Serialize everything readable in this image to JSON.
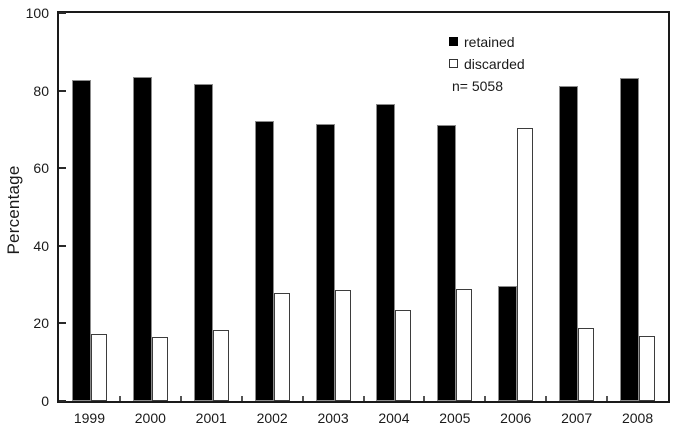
{
  "chart_data": {
    "type": "bar",
    "title": "",
    "xlabel": "",
    "ylabel": "Percentage",
    "categories": [
      "1999",
      "2000",
      "2001",
      "2002",
      "2003",
      "2004",
      "2005",
      "2006",
      "2007",
      "2008"
    ],
    "series": [
      {
        "name": "retained",
        "fill": "#000000",
        "values": [
          82.7,
          83.6,
          81.8,
          72.2,
          71.5,
          76.5,
          71.1,
          29.6,
          81.3,
          83.2
        ]
      },
      {
        "name": "discarded",
        "fill": "#ffffff",
        "values": [
          17.3,
          16.4,
          18.2,
          27.8,
          28.5,
          23.5,
          28.9,
          70.4,
          18.7,
          16.8
        ]
      }
    ],
    "ylim": [
      0,
      100
    ],
    "yticks": [
      0,
      20,
      40,
      60,
      80,
      100
    ],
    "grid": false,
    "legend": {
      "position": "upper-center-right",
      "items": [
        {
          "label": "retained",
          "swatch": "filled-black"
        },
        {
          "label": "discarded",
          "swatch": "outlined-white"
        }
      ],
      "note": "n= 5058"
    }
  },
  "colors": {
    "background": "#ffffff",
    "axis": "#1a1a1a",
    "text": "#1a1a1a",
    "bar_retained_fill": "#000000",
    "bar_discarded_fill": "#ffffff",
    "bar_outline": "#3d3d3d"
  }
}
